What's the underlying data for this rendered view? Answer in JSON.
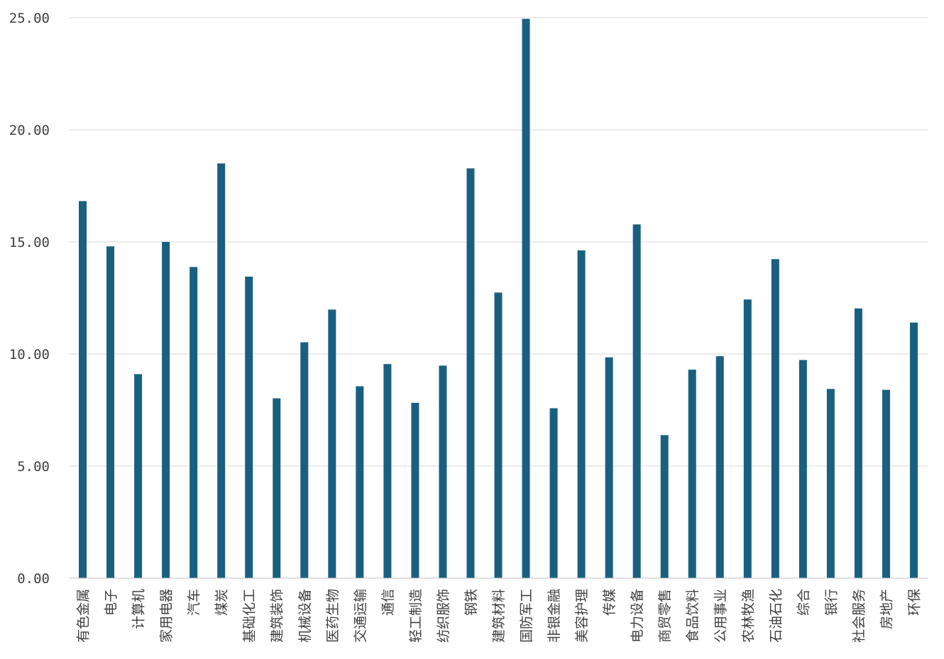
{
  "chart_data": {
    "type": "bar",
    "title": "",
    "xlabel": "",
    "ylabel": "",
    "ylim": [
      0,
      25
    ],
    "yticks": [
      "0.00",
      "5.00",
      "10.00",
      "15.00",
      "20.00",
      "25.00"
    ],
    "grid": true,
    "legend": "none",
    "bar_color": "#1a5f80",
    "categories": [
      "有色金属",
      "电子",
      "计算机",
      "家用电器",
      "汽车",
      "煤炭",
      "基础化工",
      "建筑装饰",
      "机械设备",
      "医药生物",
      "交通运输",
      "通信",
      "轻工制造",
      "纺织服饰",
      "钢铁",
      "建筑材料",
      "国防军工",
      "非银金融",
      "美容护理",
      "传媒",
      "电力设备",
      "商贸零售",
      "食品饮料",
      "公用事业",
      "农林牧渔",
      "石油石化",
      "综合",
      "银行",
      "社会服务",
      "房地产",
      "环保"
    ],
    "values": [
      16.82,
      14.8,
      9.1,
      15.0,
      13.88,
      18.5,
      13.45,
      8.02,
      10.52,
      11.98,
      8.56,
      9.55,
      7.82,
      9.48,
      18.28,
      12.74,
      24.95,
      7.58,
      14.62,
      9.85,
      15.78,
      6.38,
      9.3,
      9.9,
      12.43,
      14.23,
      9.73,
      8.44,
      12.03,
      8.4,
      11.4
    ]
  }
}
